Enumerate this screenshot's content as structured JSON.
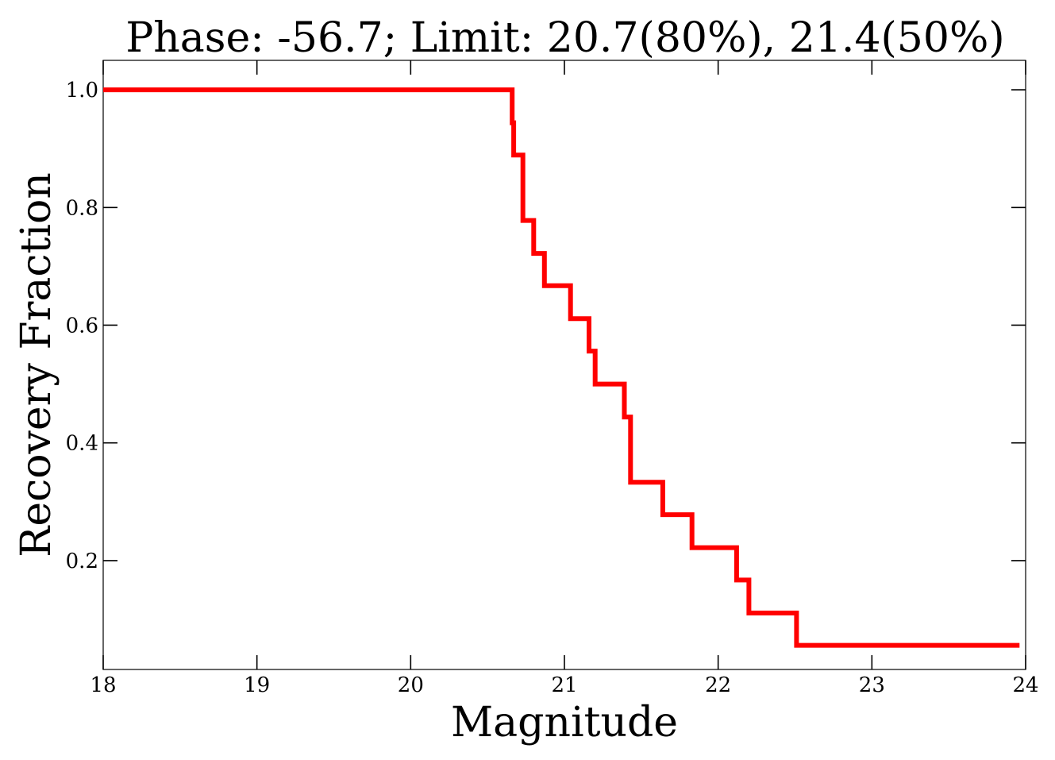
{
  "chart_data": {
    "type": "line",
    "title": "Phase: -56.7; Limit: 20.7(80%), 21.4(50%)",
    "xlabel": "Magnitude",
    "ylabel": "Recovery Fraction",
    "xlim": [
      18,
      24
    ],
    "ylim": [
      0.015,
      1.05
    ],
    "xticks": [
      18,
      19,
      20,
      21,
      22,
      23,
      24
    ],
    "xtick_labels": [
      "18",
      "19",
      "20",
      "21",
      "22",
      "23",
      "24"
    ],
    "yticks": [
      0.2,
      0.4,
      0.6,
      0.8,
      1.0
    ],
    "ytick_labels": [
      "0.2",
      "0.4",
      "0.6",
      "0.8",
      "1.0"
    ],
    "grid": false,
    "legend": "none",
    "series": [
      {
        "color": "#ff0000",
        "step": "post",
        "x": [
          18.0,
          20.66,
          20.67,
          20.73,
          20.8,
          20.87,
          21.04,
          21.16,
          21.2,
          21.39,
          21.43,
          21.64,
          21.83,
          22.12,
          22.2,
          22.51,
          23.96
        ],
        "y": [
          1.0,
          0.944,
          0.889,
          0.778,
          0.722,
          0.667,
          0.611,
          0.556,
          0.5,
          0.444,
          0.333,
          0.278,
          0.222,
          0.167,
          0.111,
          0.056,
          0.056
        ]
      }
    ]
  }
}
